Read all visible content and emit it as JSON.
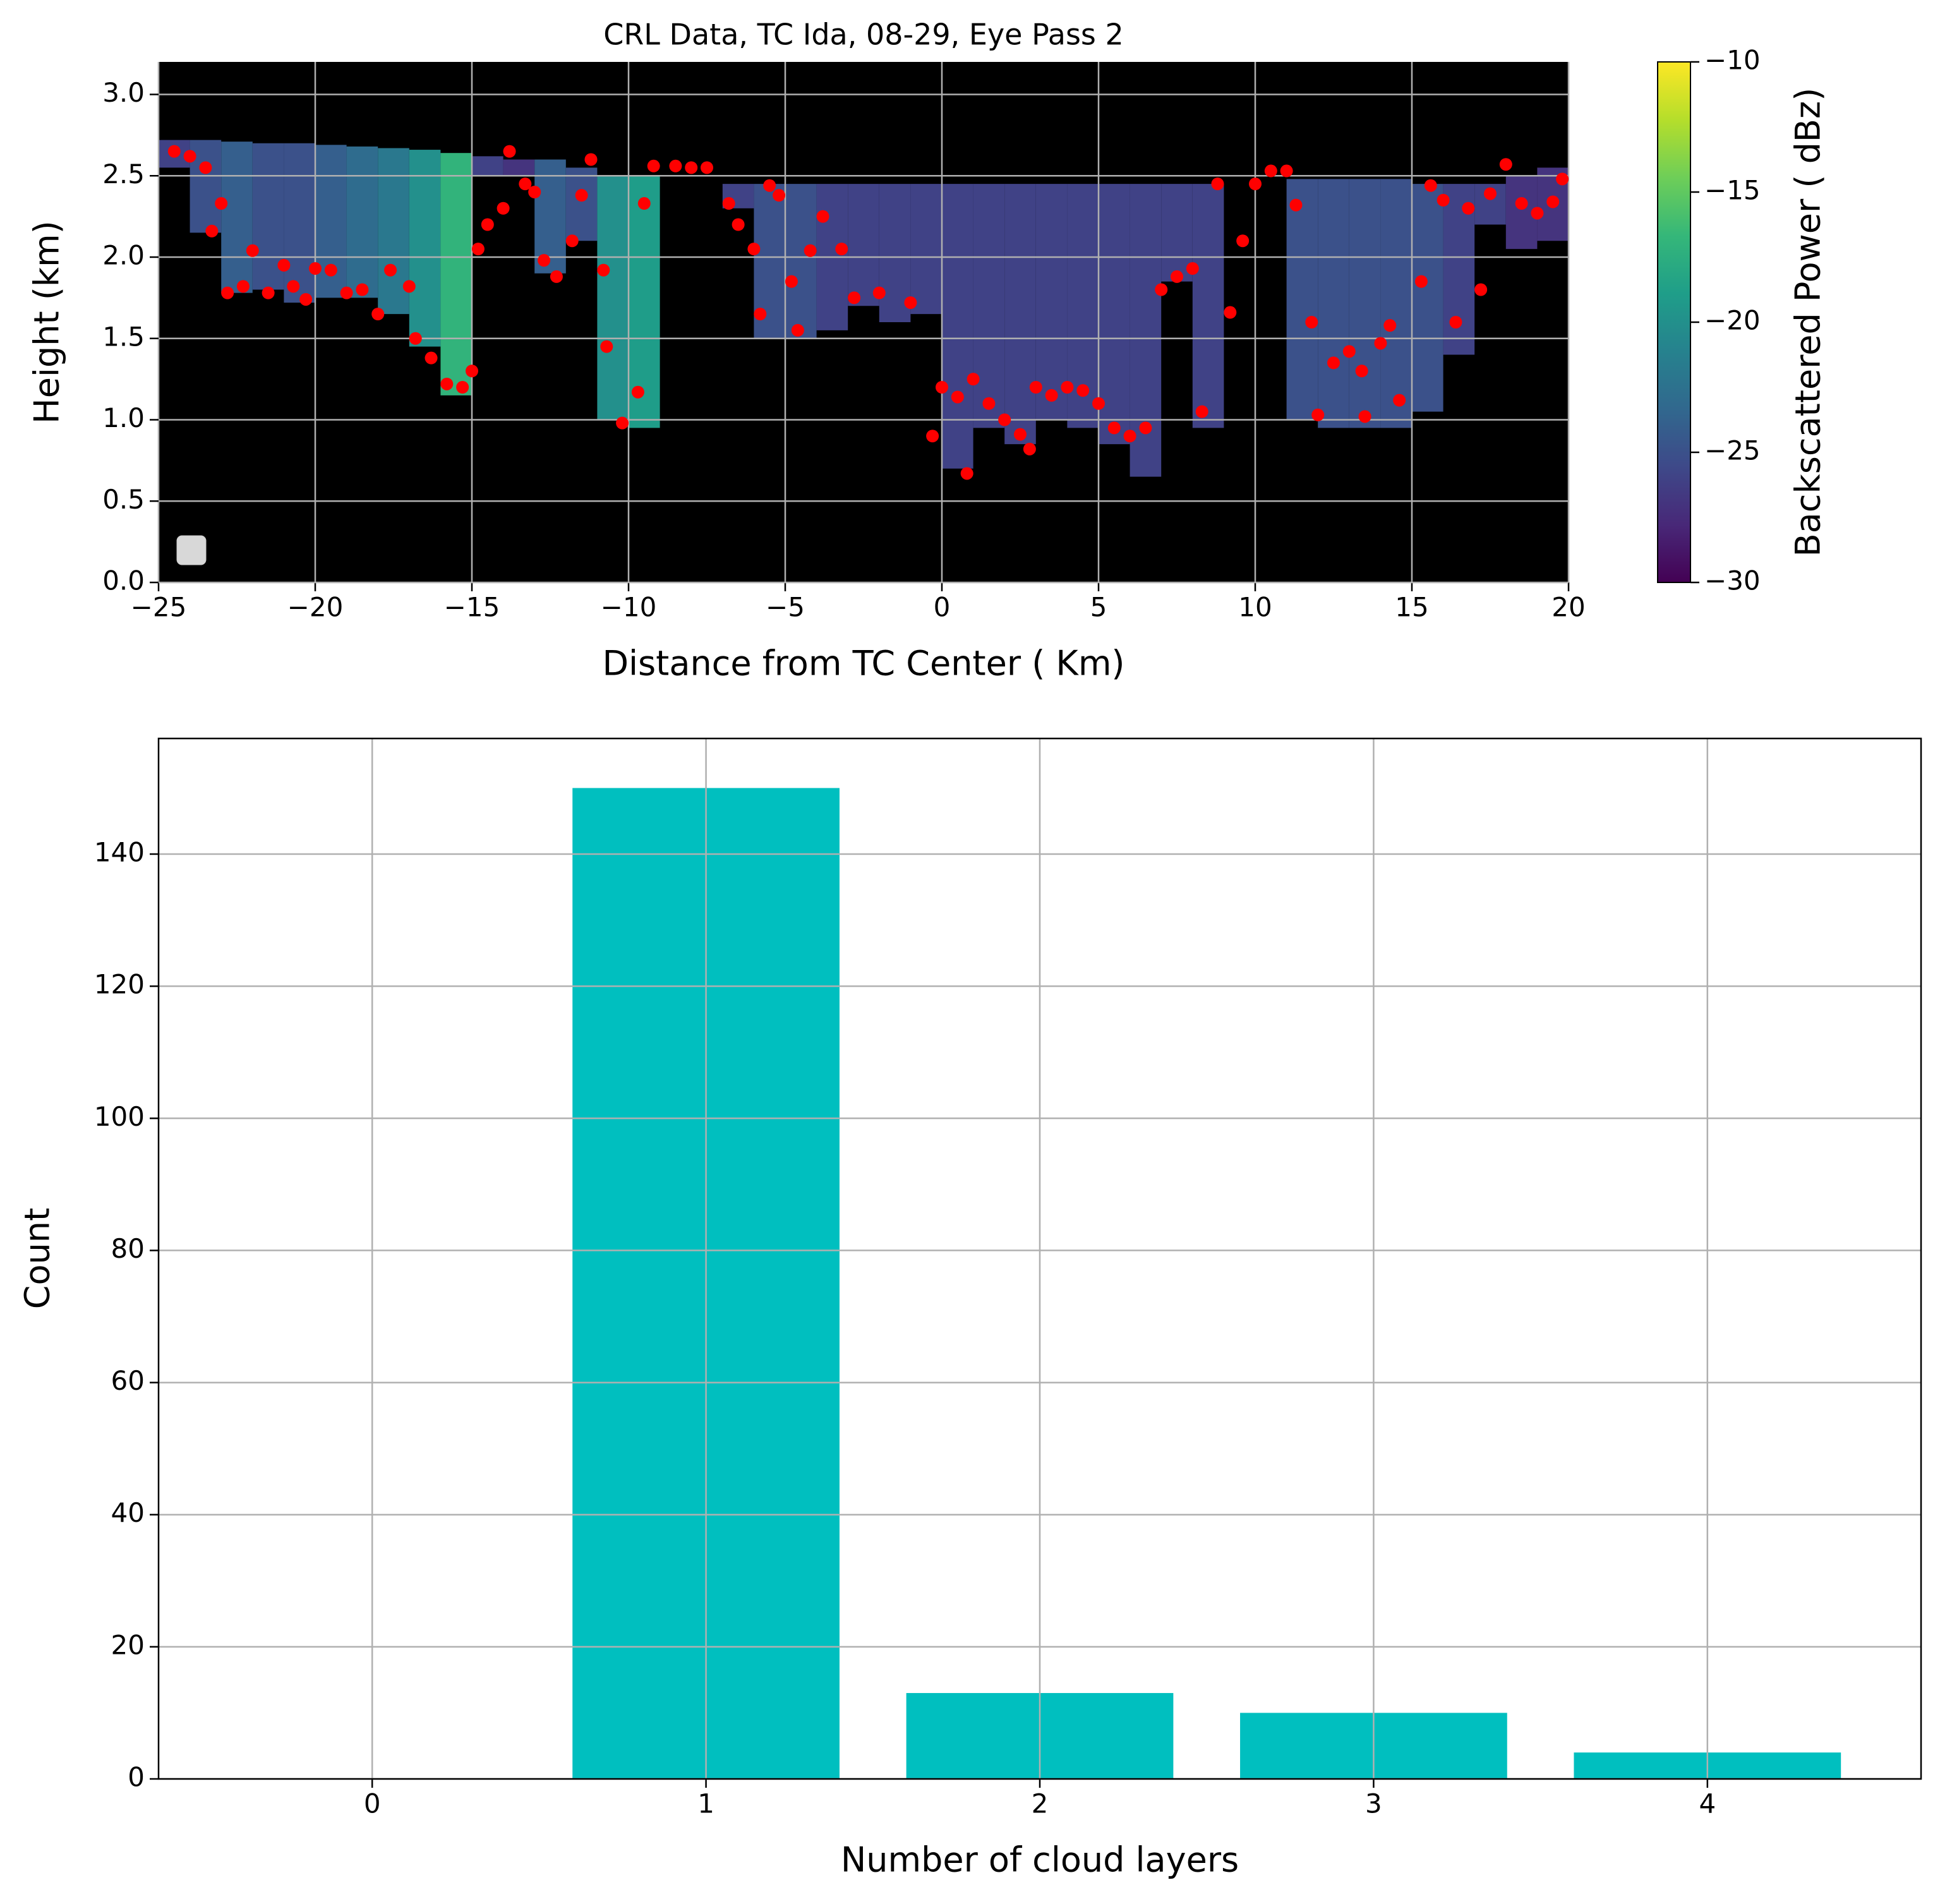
{
  "chart_data": [
    {
      "type": "heatmap",
      "title": "CRL Data, TC Ida, 08-29, Eye Pass 2",
      "xlabel": "Distance from TC Center ( Km)",
      "ylabel": "Height (km)",
      "xlim": [
        -25,
        20
      ],
      "ylim": [
        0,
        3.2
      ],
      "xticks": [
        {
          "value": -25,
          "label": "−25"
        },
        {
          "value": -20,
          "label": "−20"
        },
        {
          "value": -15,
          "label": "−15"
        },
        {
          "value": -10,
          "label": "−10"
        },
        {
          "value": -5,
          "label": "−5"
        },
        0,
        5,
        10,
        15,
        20
      ],
      "yticks": [
        {
          "value": 0,
          "label": "0.0"
        },
        0.5,
        {
          "value": 1,
          "label": "1.0"
        },
        1.5,
        {
          "value": 2,
          "label": "2.0"
        },
        2.5,
        {
          "value": 3,
          "label": "3.0"
        }
      ],
      "grid": true,
      "background": "#000000",
      "bins": [
        -25,
        -24,
        -23,
        -22,
        -21,
        -20,
        -19,
        -18,
        -17,
        -16,
        -15,
        -14,
        -13,
        -12,
        -11,
        -10,
        -9,
        -8,
        -7,
        -6,
        -5,
        -4,
        -3,
        -2,
        -1,
        0,
        1,
        2,
        3,
        4,
        5,
        6,
        7,
        8,
        9,
        10,
        11,
        12,
        13,
        14,
        15,
        16,
        17,
        18,
        19,
        20
      ],
      "top": [
        2.72,
        2.72,
        2.71,
        2.7,
        2.7,
        2.69,
        2.68,
        2.67,
        2.66,
        2.64,
        2.62,
        2.6,
        2.6,
        2.55,
        2.5,
        2.5,
        null,
        null,
        2.45,
        2.45,
        2.45,
        2.45,
        2.45,
        2.45,
        2.45,
        2.45,
        2.45,
        2.45,
        2.45,
        2.45,
        2.45,
        2.45,
        2.45,
        2.45,
        null,
        null,
        2.48,
        2.48,
        2.48,
        2.48,
        2.45,
        2.45,
        2.45,
        2.5,
        2.55
      ],
      "base": [
        2.55,
        2.15,
        1.78,
        1.8,
        1.72,
        1.75,
        1.75,
        1.65,
        1.45,
        1.15,
        2.5,
        2.5,
        1.9,
        2.1,
        1.0,
        0.95,
        null,
        null,
        2.3,
        1.5,
        1.5,
        1.55,
        1.7,
        1.6,
        1.65,
        0.7,
        0.95,
        0.85,
        1.0,
        0.95,
        0.85,
        0.65,
        1.85,
        0.95,
        null,
        null,
        1.0,
        0.95,
        0.95,
        0.95,
        1.05,
        1.4,
        2.2,
        2.05,
        2.1
      ],
      "dbz": [
        -26,
        -25,
        -24,
        -25,
        -25,
        -24,
        -23,
        -22,
        -20,
        -17,
        -26,
        -27,
        -24,
        -25,
        -20,
        -19,
        null,
        null,
        -26,
        -25,
        -25,
        -26,
        -26,
        -26,
        -26,
        -26,
        -26,
        -26,
        -26,
        -26,
        -26,
        -26,
        -26,
        -26,
        null,
        null,
        -25,
        -25,
        -25,
        -25,
        -25,
        -26,
        -26,
        -27,
        -27
      ],
      "points": {
        "color": "#ff0000",
        "x": [
          -24.5,
          -24,
          -23.5,
          -23.3,
          -23,
          -22.8,
          -22.3,
          -22,
          -21.5,
          -21,
          -20.7,
          -20.3,
          -20,
          -19.5,
          -19,
          -18.5,
          -18,
          -17.6,
          -17,
          -16.8,
          -16.3,
          -15.8,
          -15.3,
          -15,
          -14.8,
          -14.5,
          -14,
          -13.8,
          -13.3,
          -13,
          -12.7,
          -12.3,
          -11.8,
          -11.5,
          -11.2,
          -10.8,
          -10.7,
          -10.2,
          -9.7,
          -9.5,
          -9.2,
          -8.5,
          -8,
          -7.5,
          -6.8,
          -6.5,
          -6,
          -5.8,
          -5.5,
          -5.2,
          -4.8,
          -4.6,
          -4.2,
          -3.8,
          -3.2,
          -2.8,
          -2,
          -1,
          -0.3,
          0,
          0.5,
          0.8,
          1,
          1.5,
          2,
          2.5,
          2.8,
          3,
          3.5,
          4,
          4.5,
          5,
          5.5,
          6,
          6.5,
          7,
          7.5,
          8,
          8.3,
          8.8,
          9.2,
          9.6,
          10,
          10.5,
          11,
          11.3,
          11.8,
          12,
          12.5,
          13,
          13.4,
          13.5,
          14,
          14.3,
          14.6,
          15.3,
          15.6,
          16,
          16.4,
          16.8,
          17.2,
          17.5,
          18,
          18.5,
          19,
          19.5,
          19.8
        ],
        "y": [
          2.65,
          2.62,
          2.55,
          2.16,
          2.33,
          1.78,
          1.82,
          2.04,
          1.78,
          1.95,
          1.82,
          1.74,
          1.93,
          1.92,
          1.78,
          1.8,
          1.65,
          1.92,
          1.82,
          1.5,
          1.38,
          1.22,
          1.2,
          1.3,
          2.05,
          2.2,
          2.3,
          2.65,
          2.45,
          2.4,
          1.98,
          1.88,
          2.1,
          2.38,
          2.6,
          1.92,
          1.45,
          0.98,
          1.17,
          2.33,
          2.56,
          2.56,
          2.55,
          2.55,
          2.33,
          2.2,
          2.05,
          1.65,
          2.44,
          2.38,
          1.85,
          1.55,
          2.04,
          2.25,
          2.05,
          1.75,
          1.78,
          1.72,
          0.9,
          1.2,
          1.14,
          0.67,
          1.25,
          1.1,
          1.0,
          0.91,
          0.82,
          1.2,
          1.15,
          1.2,
          1.18,
          1.1,
          0.95,
          0.9,
          0.95,
          1.8,
          1.88,
          1.93,
          1.05,
          2.45,
          1.66,
          2.1,
          2.45,
          2.53,
          2.53,
          2.32,
          1.6,
          1.03,
          1.35,
          1.42,
          1.3,
          1.02,
          1.47,
          1.58,
          1.12,
          1.85,
          2.44,
          2.35,
          1.6,
          2.3,
          1.8,
          2.39,
          2.57,
          2.33,
          2.27,
          2.34,
          2.48
        ]
      },
      "colorbar": {
        "label": "Backscattered Power ( dBz)",
        "colormap": "viridis",
        "clim": [
          -30,
          -10
        ],
        "ticks": [
          {
            "value": -30,
            "label": "−30"
          },
          {
            "value": -25,
            "label": "−25"
          },
          {
            "value": -20,
            "label": "−20"
          },
          {
            "value": -15,
            "label": "−15"
          },
          {
            "value": -10,
            "label": "−10"
          }
        ]
      }
    },
    {
      "type": "bar",
      "xlabel": "Number of cloud layers",
      "ylabel": "Count",
      "x": [
        0,
        1,
        2,
        3,
        4
      ],
      "values": [
        0,
        150,
        13,
        10,
        4
      ],
      "color": "#00bfbf",
      "xlim": [
        -0.64,
        4.64
      ],
      "ylim": [
        0,
        157.5
      ],
      "xticks": [
        0,
        1,
        2,
        3,
        4
      ],
      "yticks": [
        0,
        20,
        40,
        60,
        80,
        100,
        120,
        140
      ],
      "grid": true
    }
  ]
}
